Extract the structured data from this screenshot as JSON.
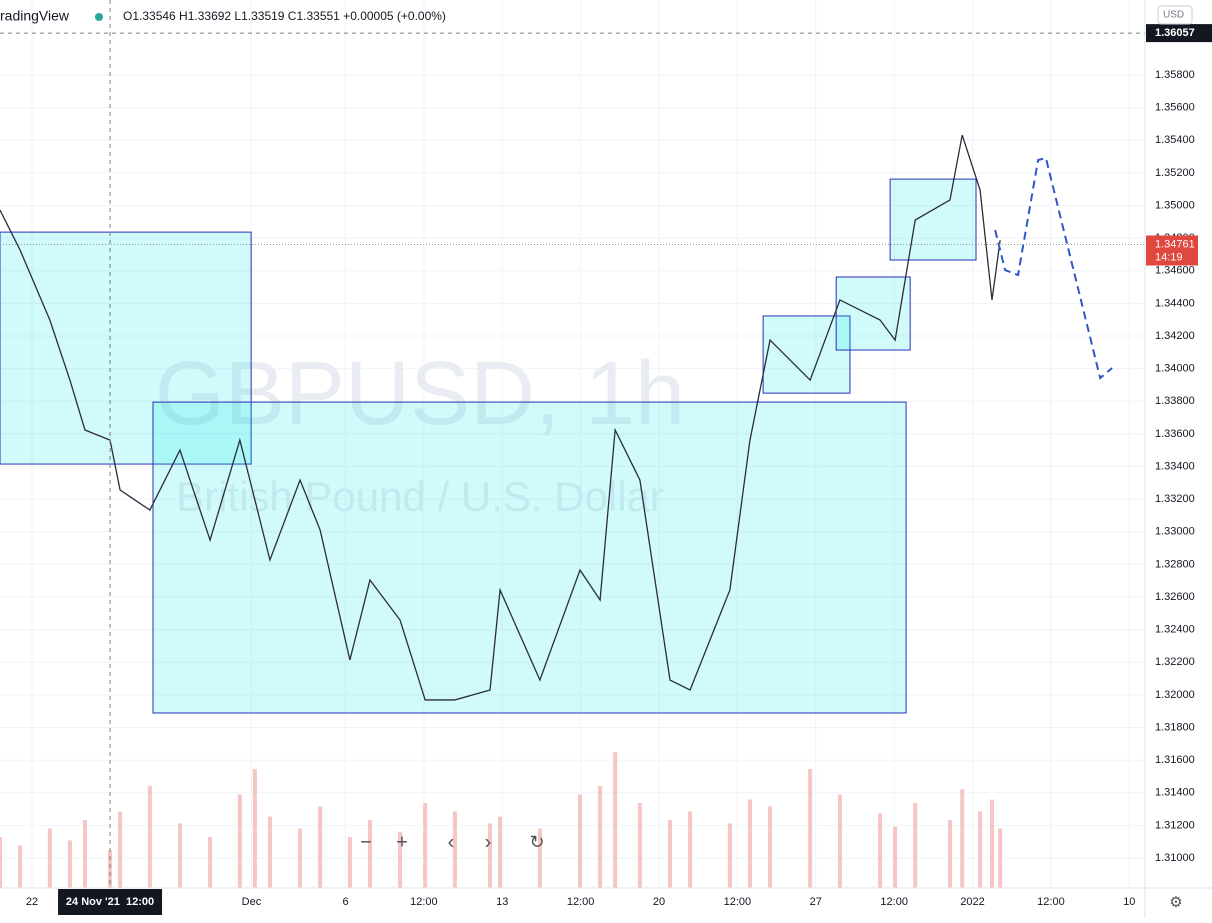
{
  "header": {
    "brand": "radingView",
    "ohlc": "O1.33546 H1.33692 L1.33519 C1.33551 +0.00005 (+0.00%)",
    "currency": "USD"
  },
  "chart_data": {
    "type": "line",
    "symbol": "GBPUSD, 1h",
    "description": "British Pound / U.S. Dollar",
    "color": "#2a2e39",
    "x": [
      -1.02,
      -0.38,
      0.57,
      1.21,
      1.69,
      2.49,
      2.81,
      3.76,
      4.72,
      5.68,
      6.63,
      7.11,
      7.59,
      8.55,
      9.19,
      10.14,
      10.78,
      11.74,
      12.54,
      13.49,
      14.61,
      14.93,
      16.2,
      17.48,
      18.12,
      18.6,
      19.39,
      20.35,
      20.99,
      22.26,
      22.9,
      23.54,
      24.82,
      25.77,
      27.05,
      27.53,
      28.17,
      29.28,
      29.67,
      30.24,
      30.62,
      30.88
    ],
    "values": [
      1.34972,
      1.34727,
      1.34298,
      1.3393,
      1.33624,
      1.33562,
      1.33256,
      1.33133,
      1.33501,
      1.32949,
      1.33562,
      1.33195,
      1.32827,
      1.33317,
      1.33011,
      1.32214,
      1.32704,
      1.32459,
      1.31969,
      1.31969,
      1.3203,
      1.32643,
      1.32091,
      1.32765,
      1.32582,
      1.33624,
      1.33317,
      1.32091,
      1.3203,
      1.32643,
      1.33562,
      1.34175,
      1.3393,
      1.34421,
      1.34298,
      1.34175,
      1.34911,
      1.35034,
      1.35432,
      1.35095,
      1.34421,
      1.34788
    ],
    "volume": {
      "color": "#f2b8b5",
      "values": [
        30,
        25,
        35,
        28,
        40,
        22,
        45,
        60,
        38,
        30,
        55,
        70,
        42,
        35,
        48,
        30,
        40,
        33,
        50,
        45,
        38,
        42,
        35,
        55,
        60,
        80,
        50,
        40,
        45,
        38,
        52,
        48,
        70,
        55,
        44,
        36,
        50,
        40,
        58,
        45,
        52,
        35
      ],
      "lim": [
        0,
        100
      ]
    },
    "xlim": [
      -1.02,
      35.5
    ],
    "ylim": [
      1.30816,
      1.3626
    ],
    "xticks": [
      {
        "value": 0,
        "label": "22"
      },
      {
        "value": 7,
        "label": "Dec"
      },
      {
        "value": 10,
        "label": "6"
      },
      {
        "value": 12.5,
        "label": "12:00"
      },
      {
        "value": 15,
        "label": "13"
      },
      {
        "value": 17.5,
        "label": "12:00"
      },
      {
        "value": 20,
        "label": "20"
      },
      {
        "value": 22.5,
        "label": "12:00"
      },
      {
        "value": 25,
        "label": "27"
      },
      {
        "value": 27.5,
        "label": "12:00"
      },
      {
        "value": 30,
        "label": "2022"
      },
      {
        "value": 32.5,
        "label": "12:00"
      },
      {
        "value": 35,
        "label": "10"
      }
    ],
    "yticks": [
      {
        "value": 1.31,
        "label": "1.31000"
      },
      {
        "value": 1.312,
        "label": "1.31200"
      },
      {
        "value": 1.314,
        "label": "1.31400"
      },
      {
        "value": 1.316,
        "label": "1.31600"
      },
      {
        "value": 1.318,
        "label": "1.31800"
      },
      {
        "value": 1.32,
        "label": "1.32000"
      },
      {
        "value": 1.322,
        "label": "1.32200"
      },
      {
        "value": 1.324,
        "label": "1.32400"
      },
      {
        "value": 1.326,
        "label": "1.32600"
      },
      {
        "value": 1.328,
        "label": "1.32800"
      },
      {
        "value": 1.33,
        "label": "1.33000"
      },
      {
        "value": 1.332,
        "label": "1.33200"
      },
      {
        "value": 1.334,
        "label": "1.33400"
      },
      {
        "value": 1.336,
        "label": "1.33600"
      },
      {
        "value": 1.338,
        "label": "1.33800"
      },
      {
        "value": 1.34,
        "label": "1.34000"
      },
      {
        "value": 1.342,
        "label": "1.34200"
      },
      {
        "value": 1.344,
        "label": "1.34400"
      },
      {
        "value": 1.346,
        "label": "1.34600"
      },
      {
        "value": 1.348,
        "label": "1.34800"
      },
      {
        "value": 1.35,
        "label": "1.35000"
      },
      {
        "value": 1.352,
        "label": "1.35200"
      },
      {
        "value": 1.354,
        "label": "1.35400"
      },
      {
        "value": 1.356,
        "label": "1.35600"
      },
      {
        "value": 1.358,
        "label": "1.35800"
      }
    ],
    "grid": true,
    "rectangles": [
      {
        "x": [
          -1.02,
          6.99
        ],
        "y": [
          1.33415,
          1.34837
        ]
      },
      {
        "x": [
          3.86,
          27.88
        ],
        "y": [
          1.31889,
          1.33795
        ]
      },
      {
        "x": [
          23.32,
          26.09
        ],
        "y": [
          1.3385,
          1.34323
        ]
      },
      {
        "x": [
          25.65,
          28.01
        ],
        "y": [
          1.34114,
          1.34562
        ]
      },
      {
        "x": [
          27.37,
          30.11
        ],
        "y": [
          1.34666,
          1.35162
        ]
      }
    ],
    "projection": {
      "color": "#2f57c7",
      "x": [
        30.72,
        31.04,
        31.45,
        32.09,
        32.34,
        34.07,
        34.45
      ],
      "values": [
        1.3485,
        1.34604,
        1.34574,
        1.35279,
        1.35291,
        1.33942,
        1.34004
      ]
    },
    "crosshair": {
      "time": 2.49,
      "time_label": "24 Nov '21  12:00",
      "price": {
        "value": 1.36057,
        "label": "1.36057"
      }
    },
    "last_price": {
      "value": 1.34761,
      "label": "1.34761",
      "countdown": "14:19",
      "color": "#e0473e"
    }
  }
}
